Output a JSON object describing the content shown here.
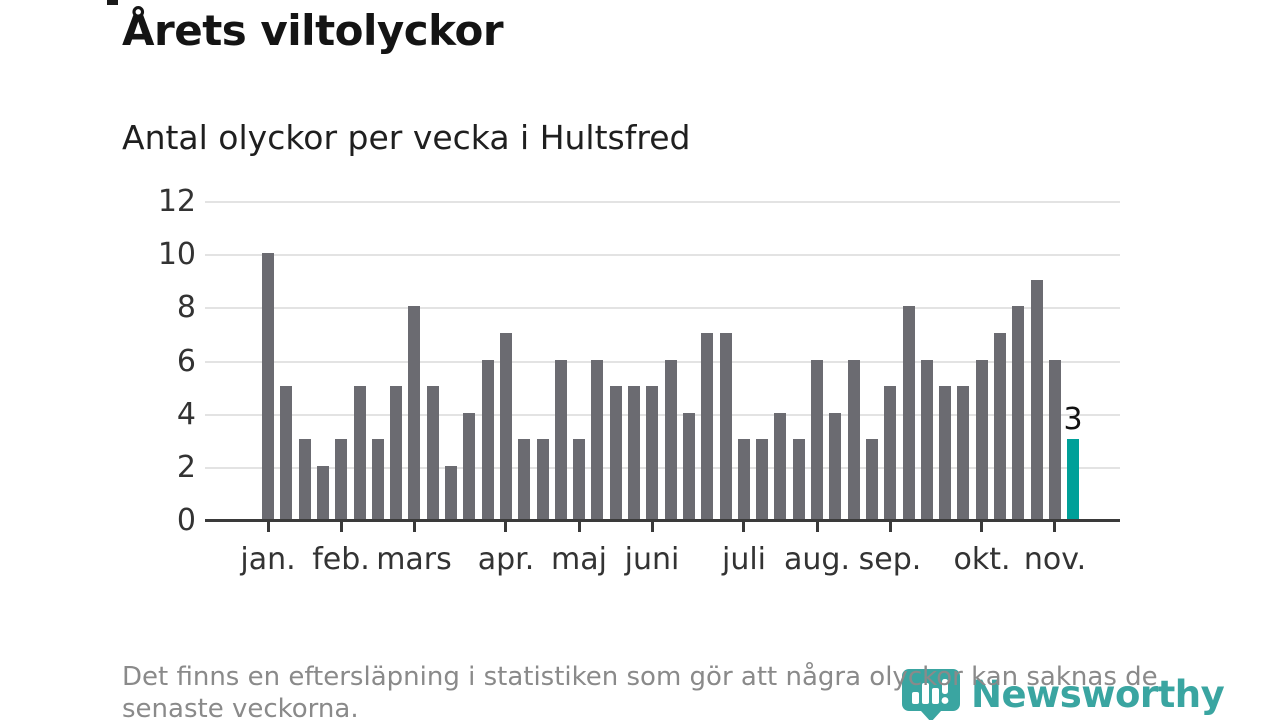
{
  "header": {
    "title": "Årets viltolyckor",
    "subtitle": "Antal olyckor per vecka i Hultsfred"
  },
  "footnote": {
    "line1": "Det finns en eftersläpning i statistiken som gör att några olyckor kan saknas de",
    "line2": "senaste veckorna."
  },
  "branding": {
    "logo_text": "Newsworthy",
    "logo_icon": "speech-bubble-bar-chart-icon"
  },
  "colors": {
    "bar": "#6b6b71",
    "highlight": "#00a099",
    "logo": "#3aa5a1",
    "grid": "#e3e3e3",
    "axis": "#3a3a3a",
    "tick_text": "#333333",
    "muted_text": "#8a8a8a"
  },
  "chart_data": {
    "type": "bar",
    "title": "Årets viltolyckor",
    "subtitle": "Antal olyckor per vecka i Hultsfred",
    "xlabel": "",
    "ylabel": "Antal olyckor per vecka",
    "ylim": [
      0,
      12
    ],
    "yticks": [
      0,
      2,
      4,
      6,
      8,
      10,
      12
    ],
    "grid": true,
    "legend": "none",
    "categories_note": "one bar per week, jan-nov",
    "values": [
      10,
      5,
      3,
      2,
      3,
      5,
      3,
      5,
      8,
      5,
      2,
      4,
      6,
      7,
      3,
      3,
      6,
      3,
      6,
      5,
      5,
      5,
      6,
      4,
      7,
      7,
      3,
      3,
      4,
      3,
      6,
      4,
      6,
      3,
      5,
      8,
      6,
      5,
      5,
      6,
      7,
      8,
      9,
      6,
      3
    ],
    "month_ticks": [
      {
        "label": "jan.",
        "index": 0
      },
      {
        "label": "feb.",
        "index": 4
      },
      {
        "label": "mars",
        "index": 8
      },
      {
        "label": "apr.",
        "index": 13
      },
      {
        "label": "maj",
        "index": 17
      },
      {
        "label": "juni",
        "index": 21
      },
      {
        "label": "juli",
        "index": 26
      },
      {
        "label": "aug.",
        "index": 30
      },
      {
        "label": "sep.",
        "index": 34
      },
      {
        "label": "okt.",
        "index": 39
      },
      {
        "label": "nov.",
        "index": 43
      }
    ],
    "highlight_last": true,
    "last_value_label": "3"
  }
}
